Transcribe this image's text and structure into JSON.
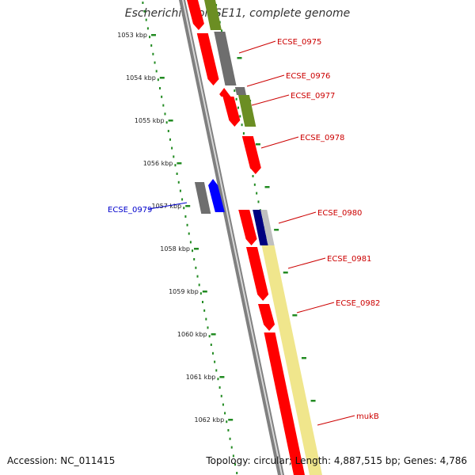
{
  "title": "Escherichia coli SE11, complete genome",
  "footer": {
    "accession": "Accession: NC_011415",
    "summary": "Topology: circular; Length: 4,887,515 bp; Genes: 4,786"
  },
  "colors": {
    "ruler": "#228b22",
    "backbone": "#7f7f7f",
    "label_red": "#cc0000",
    "label_blue": "#0000cc",
    "gene_red": "#ff0000",
    "gene_gray": "#6e6e6e",
    "gene_olive": "#6b8e23",
    "gene_blue": "#0000ff",
    "gene_navy": "#000080",
    "gene_yellow": "#f0e68c"
  },
  "ruler": {
    "ticks": [
      "1053 kbp",
      "1054 kbp",
      "1055 kbp",
      "1056 kbp",
      "1057 kbp",
      "1058 kbp",
      "1059 kbp",
      "1060 kbp",
      "1061 kbp",
      "1062 kbp"
    ]
  },
  "gene_labels": [
    {
      "text": "ECSE_0975",
      "color": "red"
    },
    {
      "text": "ECSE_0976",
      "color": "red"
    },
    {
      "text": "ECSE_0977",
      "color": "red"
    },
    {
      "text": "ECSE_0978",
      "color": "red"
    },
    {
      "text": "ECSE_0979",
      "color": "blue"
    },
    {
      "text": "ECSE_0980",
      "color": "red"
    },
    {
      "text": "ECSE_0981",
      "color": "red"
    },
    {
      "text": "ECSE_0982",
      "color": "red"
    },
    {
      "text": "mukB",
      "color": "red"
    }
  ]
}
